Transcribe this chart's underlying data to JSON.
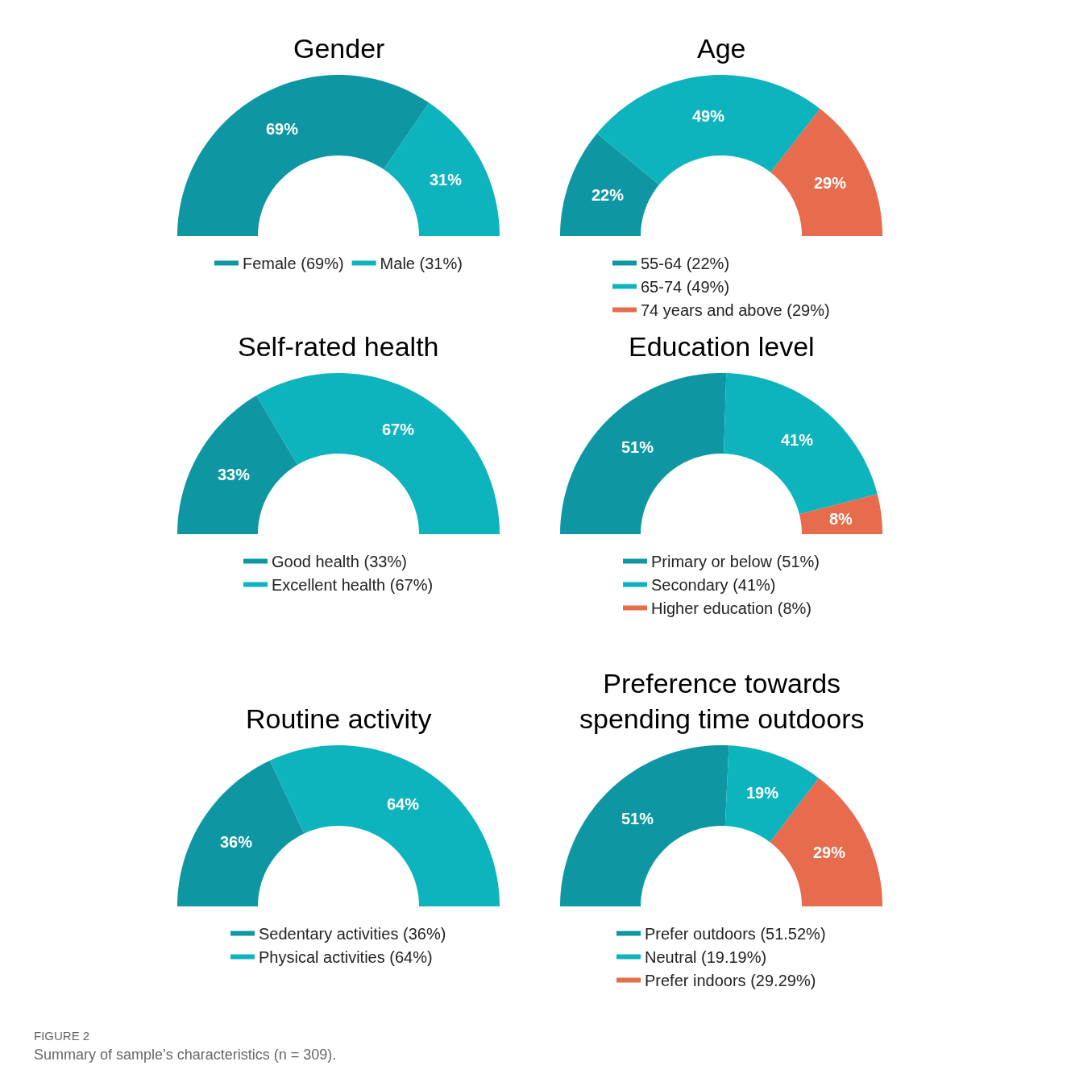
{
  "chart_data": [
    {
      "type": "donut",
      "title": "Gender",
      "categories": [
        "Female (69%)",
        "Male (31%)"
      ],
      "values": [
        69,
        31
      ],
      "colors": [
        "#0e97a3",
        "#0db3bd"
      ],
      "value_labels": [
        "69%",
        "31%"
      ],
      "legend": "bottom"
    },
    {
      "type": "donut",
      "title": "Age",
      "categories": [
        "55-64 (22%)",
        "65-74 (49%)",
        "74 years and above (29%)"
      ],
      "values": [
        22,
        49,
        29
      ],
      "colors": [
        "#0e97a3",
        "#0db3bd",
        "#e76b4d"
      ],
      "value_labels": [
        "22%",
        "49%",
        "29%"
      ],
      "legend": "bottom"
    },
    {
      "type": "donut",
      "title": "Self-rated health",
      "categories": [
        "Good health (33%)",
        "Excellent health (67%)"
      ],
      "values": [
        33,
        67
      ],
      "colors": [
        "#0e97a3",
        "#0db3bd"
      ],
      "value_labels": [
        "33%",
        "67%"
      ],
      "legend": "bottom"
    },
    {
      "type": "donut",
      "title": "Education level",
      "categories": [
        "Primary or below (51%)",
        "Secondary (41%)",
        "Higher education (8%)"
      ],
      "values": [
        51,
        41,
        8
      ],
      "colors": [
        "#0e97a3",
        "#0db3bd",
        "#e76b4d"
      ],
      "value_labels": [
        "51%",
        "41%",
        "8%"
      ],
      "legend": "bottom"
    },
    {
      "type": "donut",
      "title": "Routine activity",
      "categories": [
        "Sedentary activities (36%)",
        "Physical activities (64%)"
      ],
      "values": [
        36,
        64
      ],
      "colors": [
        "#0e97a3",
        "#0db3bd"
      ],
      "value_labels": [
        "36%",
        "64%"
      ],
      "legend": "bottom"
    },
    {
      "type": "donut",
      "title": "Preference towards\nspending time outdoors",
      "categories": [
        "Prefer outdoors (51.52%)",
        "Neutral (19.19%)",
        "Prefer indoors (29.29%)"
      ],
      "values": [
        51,
        19,
        29
      ],
      "colors": [
        "#0e97a3",
        "#0db3bd",
        "#e76b4d"
      ],
      "value_labels": [
        "51%",
        "19%",
        "29%"
      ],
      "legend": "bottom",
      "annotations": [
        "FIGURE 2",
        "Summary of sample’s characteristics (n = 309)."
      ]
    }
  ]
}
